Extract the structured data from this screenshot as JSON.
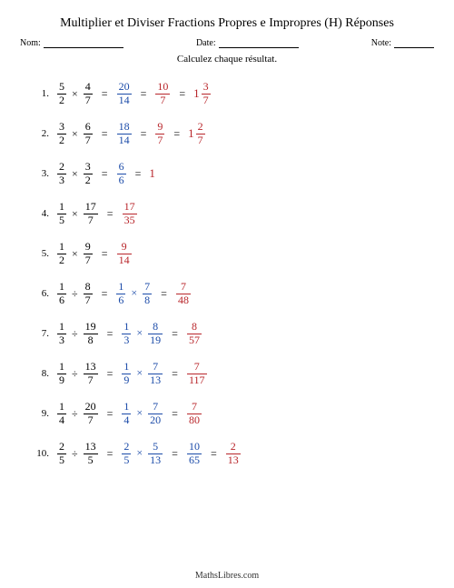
{
  "title": "Multiplier et Diviser Fractions Propres e Impropres (H) Réponses",
  "labels": {
    "name": "Nom:",
    "date": "Date:",
    "note": "Note:"
  },
  "instruction": "Calculez chaque résultat.",
  "footer": "MathsLibres.com",
  "colors": {
    "input": "#000000",
    "intermediate": "#1a4aa8",
    "result": "#b8252a"
  },
  "problems": [
    {
      "n": "1.",
      "a": {
        "t": "5",
        "b": "2"
      },
      "op": "×",
      "bF": {
        "t": "4",
        "b": "7"
      },
      "steps": [
        {
          "frac": {
            "t": "20",
            "b": "14"
          },
          "c": "blue"
        },
        {
          "frac": {
            "t": "10",
            "b": "7"
          },
          "c": "red"
        },
        {
          "mixed": {
            "w": "1",
            "t": "3",
            "b": "7"
          },
          "c": "red"
        }
      ]
    },
    {
      "n": "2.",
      "a": {
        "t": "3",
        "b": "2"
      },
      "op": "×",
      "bF": {
        "t": "6",
        "b": "7"
      },
      "steps": [
        {
          "frac": {
            "t": "18",
            "b": "14"
          },
          "c": "blue"
        },
        {
          "frac": {
            "t": "9",
            "b": "7"
          },
          "c": "red"
        },
        {
          "mixed": {
            "w": "1",
            "t": "2",
            "b": "7"
          },
          "c": "red"
        }
      ]
    },
    {
      "n": "3.",
      "a": {
        "t": "2",
        "b": "3"
      },
      "op": "×",
      "bF": {
        "t": "3",
        "b": "2"
      },
      "steps": [
        {
          "frac": {
            "t": "6",
            "b": "6"
          },
          "c": "blue"
        },
        {
          "int": "1",
          "c": "red"
        }
      ]
    },
    {
      "n": "4.",
      "a": {
        "t": "1",
        "b": "5"
      },
      "op": "×",
      "bF": {
        "t": "17",
        "b": "7"
      },
      "steps": [
        {
          "frac": {
            "t": "17",
            "b": "35"
          },
          "c": "red"
        }
      ]
    },
    {
      "n": "5.",
      "a": {
        "t": "1",
        "b": "2"
      },
      "op": "×",
      "bF": {
        "t": "9",
        "b": "7"
      },
      "steps": [
        {
          "frac": {
            "t": "9",
            "b": "14"
          },
          "c": "red"
        }
      ]
    },
    {
      "n": "6.",
      "a": {
        "t": "1",
        "b": "6"
      },
      "op": "÷",
      "bF": {
        "t": "8",
        "b": "7"
      },
      "steps": [
        {
          "expr": {
            "a": {
              "t": "1",
              "b": "6"
            },
            "op": "×",
            "b": {
              "t": "7",
              "b": "8"
            }
          },
          "c": "blue"
        },
        {
          "frac": {
            "t": "7",
            "b": "48"
          },
          "c": "red"
        }
      ]
    },
    {
      "n": "7.",
      "a": {
        "t": "1",
        "b": "3"
      },
      "op": "÷",
      "bF": {
        "t": "19",
        "b": "8"
      },
      "steps": [
        {
          "expr": {
            "a": {
              "t": "1",
              "b": "3"
            },
            "op": "×",
            "b": {
              "t": "8",
              "b": "19"
            }
          },
          "c": "blue"
        },
        {
          "frac": {
            "t": "8",
            "b": "57"
          },
          "c": "red"
        }
      ]
    },
    {
      "n": "8.",
      "a": {
        "t": "1",
        "b": "9"
      },
      "op": "÷",
      "bF": {
        "t": "13",
        "b": "7"
      },
      "steps": [
        {
          "expr": {
            "a": {
              "t": "1",
              "b": "9"
            },
            "op": "×",
            "b": {
              "t": "7",
              "b": "13"
            }
          },
          "c": "blue"
        },
        {
          "frac": {
            "t": "7",
            "b": "117"
          },
          "c": "red"
        }
      ]
    },
    {
      "n": "9.",
      "a": {
        "t": "1",
        "b": "4"
      },
      "op": "÷",
      "bF": {
        "t": "20",
        "b": "7"
      },
      "steps": [
        {
          "expr": {
            "a": {
              "t": "1",
              "b": "4"
            },
            "op": "×",
            "b": {
              "t": "7",
              "b": "20"
            }
          },
          "c": "blue"
        },
        {
          "frac": {
            "t": "7",
            "b": "80"
          },
          "c": "red"
        }
      ]
    },
    {
      "n": "10.",
      "a": {
        "t": "2",
        "b": "5"
      },
      "op": "÷",
      "bF": {
        "t": "13",
        "b": "5"
      },
      "steps": [
        {
          "expr": {
            "a": {
              "t": "2",
              "b": "5"
            },
            "op": "×",
            "b": {
              "t": "5",
              "b": "13"
            }
          },
          "c": "blue"
        },
        {
          "frac": {
            "t": "10",
            "b": "65"
          },
          "c": "blue"
        },
        {
          "frac": {
            "t": "2",
            "b": "13"
          },
          "c": "red"
        }
      ]
    }
  ]
}
